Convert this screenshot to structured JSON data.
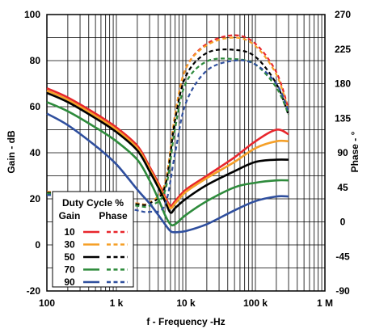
{
  "chart_data": {
    "type": "line",
    "xlabel": "f - Frequency -Hz",
    "ylabel": "Gain - dB",
    "y2label": "Phase - °",
    "x_scale": "log",
    "xlim": [
      100,
      1000000
    ],
    "ylim": [
      -20,
      100
    ],
    "y2lim": [
      -90,
      270
    ],
    "x_ticks": [
      100,
      1000,
      10000,
      100000,
      1000000
    ],
    "x_tick_labels": [
      "100",
      "1 k",
      "10 k",
      "100 k",
      "1 M"
    ],
    "y_ticks": [
      -20,
      0,
      20,
      40,
      60,
      80,
      100
    ],
    "y_tick_labels": [
      "-20",
      "0",
      "20",
      "40",
      "60",
      "80",
      "100"
    ],
    "y2_ticks": [
      -90,
      -45,
      0,
      45,
      90,
      135,
      180,
      225,
      270
    ],
    "y2_tick_labels": [
      "-90",
      "-45",
      "0",
      "45",
      "90",
      "135",
      "180",
      "225",
      "270"
    ],
    "grid": true,
    "legend": {
      "title": "Duty Cycle %",
      "col_gain": "Gain",
      "col_phase": "Phase",
      "placement": "lower-left",
      "entries": [
        "10",
        "30",
        "50",
        "70",
        "90"
      ]
    },
    "series": [
      {
        "name": "10",
        "color": "#e8262c",
        "gain": {
          "x": [
            100,
            200,
            500,
            1000,
            2000,
            3000,
            4000,
            5000,
            6000,
            7000,
            10000,
            20000,
            50000,
            100000,
            200000,
            300000
          ],
          "y": [
            68,
            64,
            57,
            51,
            43,
            34,
            27,
            21,
            17,
            19,
            24,
            30,
            38,
            45,
            50,
            48
          ]
        },
        "phase": {
          "x": [
            100,
            200,
            500,
            1000,
            2000,
            3000,
            5000,
            7000,
            10000,
            20000,
            50000,
            100000,
            200000,
            300000
          ],
          "y": [
            39,
            38,
            34,
            29,
            24,
            25,
            50,
            140,
            200,
            232,
            243,
            232,
            195,
            147
          ]
        }
      },
      {
        "name": "30",
        "color": "#f5a029",
        "gain": {
          "x": [
            100,
            200,
            500,
            1000,
            2000,
            3000,
            4000,
            5000,
            6000,
            7000,
            10000,
            20000,
            50000,
            100000,
            200000,
            300000
          ],
          "y": [
            67,
            63,
            56,
            50,
            42,
            33,
            26,
            20,
            16,
            18,
            23,
            29,
            36,
            42,
            45,
            45
          ]
        },
        "phase": {
          "x": [
            100,
            200,
            500,
            1000,
            2000,
            3000,
            5000,
            7000,
            10000,
            20000,
            50000,
            100000,
            200000,
            300000
          ],
          "y": [
            39,
            38,
            34,
            29,
            24,
            25,
            50,
            140,
            200,
            230,
            240,
            229,
            192,
            145
          ]
        }
      },
      {
        "name": "50",
        "color": "#000000",
        "gain": {
          "x": [
            100,
            200,
            500,
            1000,
            2000,
            3000,
            4000,
            5000,
            6000,
            7000,
            10000,
            20000,
            50000,
            100000,
            200000,
            300000
          ],
          "y": [
            66,
            62,
            55,
            49,
            41,
            32,
            25,
            19,
            14,
            16,
            20,
            26,
            32,
            36,
            37,
            37
          ]
        },
        "phase": {
          "x": [
            100,
            200,
            500,
            1000,
            2000,
            3000,
            5000,
            7000,
            10000,
            20000,
            50000,
            100000,
            200000,
            300000
          ],
          "y": [
            38,
            37,
            33,
            28,
            23,
            24,
            46,
            133,
            190,
            220,
            224,
            215,
            180,
            139
          ]
        }
      },
      {
        "name": "70",
        "color": "#2e8b3c",
        "gain": {
          "x": [
            100,
            200,
            500,
            1000,
            2000,
            3000,
            4000,
            5000,
            6000,
            7000,
            10000,
            20000,
            50000,
            100000,
            200000,
            300000
          ],
          "y": [
            62,
            58,
            51,
            45,
            37,
            28,
            20,
            13,
            9,
            9,
            13,
            19,
            25,
            27,
            28,
            28
          ]
        },
        "phase": {
          "x": [
            100,
            200,
            500,
            1000,
            2000,
            3000,
            5000,
            7000,
            10000,
            20000,
            50000,
            100000,
            200000,
            300000
          ],
          "y": [
            37,
            36,
            32,
            26,
            21,
            21,
            40,
            122,
            181,
            209,
            212,
            205,
            175,
            140
          ]
        }
      },
      {
        "name": "90",
        "color": "#2f4f9e",
        "gain": {
          "x": [
            100,
            200,
            500,
            1000,
            2000,
            3000,
            4000,
            5000,
            6000,
            7000,
            10000,
            20000,
            50000,
            100000,
            200000,
            300000
          ],
          "y": [
            57,
            52,
            43,
            35,
            24,
            18,
            13,
            9,
            6,
            5.5,
            6,
            9,
            15,
            19,
            21,
            21
          ]
        },
        "phase": {
          "x": [
            100,
            200,
            500,
            1000,
            2000,
            3000,
            5000,
            7000,
            10000,
            20000,
            50000,
            100000,
            200000,
            300000
          ],
          "y": [
            35,
            34,
            29,
            22,
            15,
            13,
            22,
            90,
            155,
            197,
            210,
            205,
            180,
            145
          ]
        }
      }
    ]
  }
}
